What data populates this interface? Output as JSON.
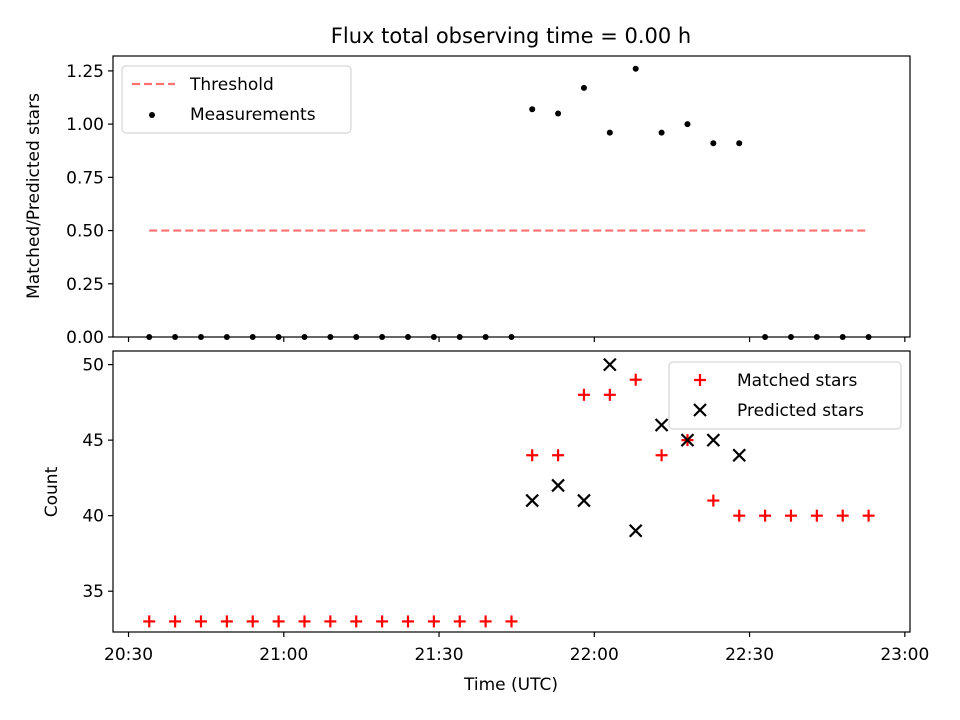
{
  "title": "Flux total observing time = 0.00 h",
  "colors": {
    "threshold": "#ff7070",
    "measurements": "#000000",
    "matched": "#ff0000",
    "predicted": "#000000"
  },
  "chart_data": [
    {
      "type": "scatter",
      "ylabel": "Matched/Predicted stars",
      "ylim": [
        0,
        1.32
      ],
      "yticks": [
        0,
        0.25,
        0.5,
        0.75,
        1.0,
        1.25
      ],
      "ytick_labels": [
        "0.00",
        "0.25",
        "0.50",
        "0.75",
        "1.00",
        "1.25"
      ],
      "xlim": [
        "20:27",
        "23:01"
      ],
      "xticks": [
        "20:30",
        "21:00",
        "21:30",
        "22:00",
        "22:30",
        "23:00"
      ],
      "legend_position": "upper-left",
      "threshold": {
        "name": "Threshold",
        "x": [
          "20:34",
          "22:53"
        ],
        "y": 0.5,
        "style": "dashed"
      },
      "series": [
        {
          "name": "Measurements",
          "marker": "dot",
          "x": [
            "20:34",
            "20:39",
            "20:44",
            "20:49",
            "20:54",
            "20:59",
            "21:04",
            "21:09",
            "21:14",
            "21:19",
            "21:24",
            "21:29",
            "21:34",
            "21:39",
            "21:44",
            "21:48",
            "21:53",
            "21:58",
            "22:03",
            "22:08",
            "22:13",
            "22:18",
            "22:23",
            "22:28",
            "22:33",
            "22:38",
            "22:43",
            "22:48",
            "22:53"
          ],
          "y": [
            0,
            0,
            0,
            0,
            0,
            0,
            0,
            0,
            0,
            0,
            0,
            0,
            0,
            0,
            0,
            1.07,
            1.05,
            1.17,
            0.96,
            1.26,
            0.96,
            1.0,
            0.91,
            0.91,
            0,
            0,
            0,
            0,
            0
          ]
        }
      ]
    },
    {
      "type": "scatter",
      "ylabel": "Count",
      "xlabel": "Time (UTC)",
      "ylim": [
        32.3,
        50.9
      ],
      "yticks": [
        35,
        40,
        45,
        50
      ],
      "ytick_labels": [
        "35",
        "40",
        "45",
        "50"
      ],
      "xlim": [
        "20:27",
        "23:01"
      ],
      "xticks": [
        "20:30",
        "21:00",
        "21:30",
        "22:00",
        "22:30",
        "23:00"
      ],
      "xtick_labels": [
        "20:30",
        "21:00",
        "21:30",
        "22:00",
        "22:30",
        "23:00"
      ],
      "legend_position": "upper-right",
      "series": [
        {
          "name": "Matched stars",
          "marker": "plus",
          "x": [
            "20:34",
            "20:39",
            "20:44",
            "20:49",
            "20:54",
            "20:59",
            "21:04",
            "21:09",
            "21:14",
            "21:19",
            "21:24",
            "21:29",
            "21:34",
            "21:39",
            "21:44",
            "21:48",
            "21:53",
            "21:58",
            "22:03",
            "22:08",
            "22:13",
            "22:18",
            "22:23",
            "22:28",
            "22:33",
            "22:38",
            "22:43",
            "22:48",
            "22:53"
          ],
          "y": [
            33,
            33,
            33,
            33,
            33,
            33,
            33,
            33,
            33,
            33,
            33,
            33,
            33,
            33,
            33,
            44,
            44,
            48,
            48,
            49,
            44,
            45,
            41,
            40,
            40,
            40,
            40,
            40,
            40
          ]
        },
        {
          "name": "Predicted stars",
          "marker": "x",
          "x": [
            "21:48",
            "21:53",
            "21:58",
            "22:03",
            "22:08",
            "22:13",
            "22:18",
            "22:23",
            "22:28"
          ],
          "y": [
            41,
            42,
            41,
            50,
            39,
            46,
            45,
            45,
            44
          ]
        }
      ]
    }
  ]
}
